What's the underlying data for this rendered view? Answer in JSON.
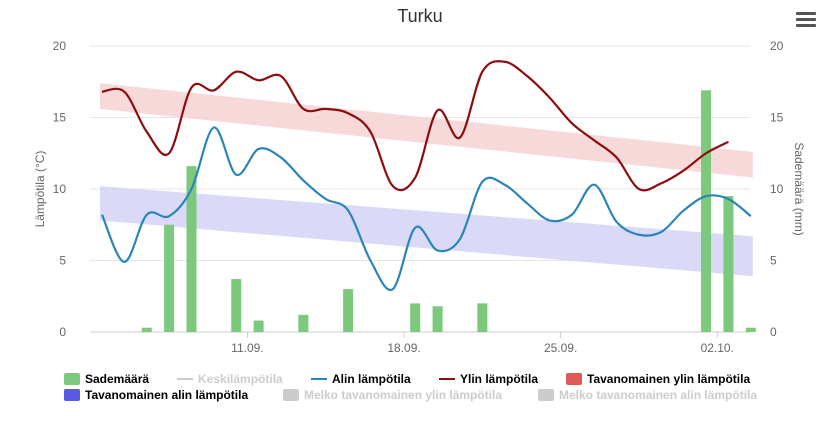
{
  "title": "Turku",
  "menu_label": "Chart menu",
  "legend": [
    {
      "label": "Sademäärä",
      "symbol": "box",
      "color": "#7cc87c",
      "hidden": false
    },
    {
      "label": "Keskilämpötila",
      "symbol": "line",
      "color": "#cccccc",
      "hidden": true
    },
    {
      "label": "Alin lämpötila",
      "symbol": "line",
      "color": "#2a85b8",
      "hidden": false
    },
    {
      "label": "Ylin lämpötila",
      "symbol": "line",
      "color": "#8b0d10",
      "hidden": false
    },
    {
      "label": "Tavanomainen ylin lämpötila",
      "symbol": "box",
      "color": "#e05a5a",
      "hidden": false
    },
    {
      "label": "Tavanomainen alin lämpötila",
      "symbol": "box",
      "color": "#5a5ae0",
      "hidden": false
    },
    {
      "label": "Melko tavanomainen ylin lämpötila",
      "symbol": "box",
      "color": "#cccccc",
      "hidden": true
    },
    {
      "label": "Melko tavanomainen alin lämpötila",
      "symbol": "box",
      "color": "#cccccc",
      "hidden": true
    }
  ],
  "chart_data": {
    "type": "combo",
    "title": "Turku",
    "ylabel_left": "Lämpötila (°C)",
    "ylabel_right": "Sademäärä (mm)",
    "ylim_left": [
      0,
      20
    ],
    "ylim_right": [
      0,
      20
    ],
    "yticks": [
      0,
      5,
      10,
      15,
      20
    ],
    "xlim": [
      0,
      29.5
    ],
    "xticks": [
      {
        "day": 6.5,
        "label": "11.09."
      },
      {
        "day": 13.5,
        "label": "18.09."
      },
      {
        "day": 20.5,
        "label": "25.09."
      },
      {
        "day": 27.5,
        "label": "02.10."
      }
    ],
    "colors": {
      "precip": "#7cc87c",
      "min_temp": "#2a85b8",
      "max_temp": "#8b0d10",
      "normal_max_band": "#f7d2d4",
      "normal_min_band": "#d4d4f7",
      "grid": "#e6e6e6"
    },
    "normal_max_band": {
      "start": [
        15.6,
        17.4
      ],
      "end": [
        10.8,
        12.6
      ]
    },
    "normal_min_band": {
      "start": [
        7.8,
        10.2
      ],
      "end": [
        3.9,
        6.7
      ]
    },
    "series": [
      {
        "name": "Sademäärä",
        "type": "bar",
        "points": [
          [
            2,
            0.3
          ],
          [
            3,
            7.5
          ],
          [
            4,
            11.6
          ],
          [
            6,
            3.7
          ],
          [
            7,
            0.8
          ],
          [
            9,
            1.2
          ],
          [
            11,
            3.0
          ],
          [
            14,
            2.0
          ],
          [
            15,
            1.8
          ],
          [
            17,
            2.0
          ],
          [
            27,
            16.9
          ],
          [
            28,
            9.5
          ],
          [
            29,
            0.3
          ]
        ]
      },
      {
        "name": "Alin lämpötila",
        "type": "line",
        "points": [
          [
            0,
            8.2
          ],
          [
            1,
            4.9
          ],
          [
            2,
            8.2
          ],
          [
            3,
            8.1
          ],
          [
            4,
            10.0
          ],
          [
            5,
            14.3
          ],
          [
            6,
            11.0
          ],
          [
            7,
            12.8
          ],
          [
            8,
            12.2
          ],
          [
            9,
            10.6
          ],
          [
            10,
            9.3
          ],
          [
            11,
            8.5
          ],
          [
            12,
            5.0
          ],
          [
            13,
            3.0
          ],
          [
            14,
            7.3
          ],
          [
            15,
            5.7
          ],
          [
            16,
            6.5
          ],
          [
            17,
            10.5
          ],
          [
            18,
            10.3
          ],
          [
            19,
            9.0
          ],
          [
            20,
            7.8
          ],
          [
            21,
            8.2
          ],
          [
            22,
            10.3
          ],
          [
            23,
            7.7
          ],
          [
            24,
            6.8
          ],
          [
            25,
            7.0
          ],
          [
            26,
            8.5
          ],
          [
            27,
            9.5
          ],
          [
            28,
            9.3
          ],
          [
            29,
            8.1
          ]
        ]
      },
      {
        "name": "Ylin lämpötila",
        "type": "line",
        "points": [
          [
            0,
            16.8
          ],
          [
            1,
            16.8
          ],
          [
            2,
            14.0
          ],
          [
            3,
            12.5
          ],
          [
            4,
            17.1
          ],
          [
            5,
            16.9
          ],
          [
            6,
            18.2
          ],
          [
            7,
            17.6
          ],
          [
            8,
            17.9
          ],
          [
            9,
            15.6
          ],
          [
            10,
            15.6
          ],
          [
            11,
            15.3
          ],
          [
            12,
            14.0
          ],
          [
            13,
            10.2
          ],
          [
            14,
            10.8
          ],
          [
            15,
            15.5
          ],
          [
            16,
            13.6
          ],
          [
            17,
            18.2
          ],
          [
            18,
            18.9
          ],
          [
            19,
            17.9
          ],
          [
            20,
            16.4
          ],
          [
            21,
            14.6
          ],
          [
            22,
            13.4
          ],
          [
            23,
            12.2
          ],
          [
            24,
            10.0
          ],
          [
            25,
            10.4
          ],
          [
            26,
            11.3
          ],
          [
            27,
            12.5
          ],
          [
            28,
            13.3
          ]
        ]
      }
    ]
  }
}
